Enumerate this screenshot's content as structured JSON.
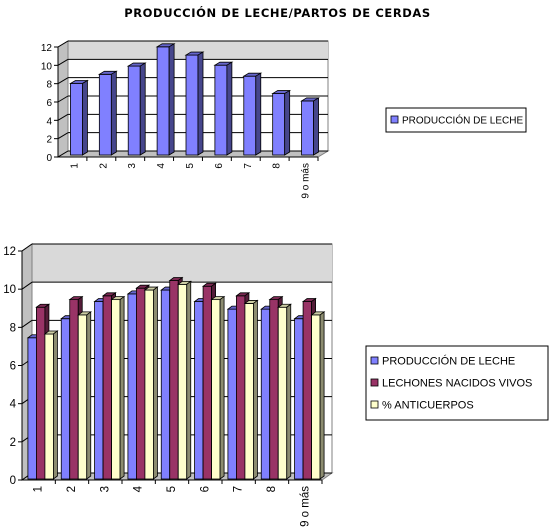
{
  "title": "PRODUCCIÓN DE LECHE/PARTOS DE CERDAS",
  "chart_data": [
    {
      "type": "bar",
      "title": "PRODUCCIÓN DE LECHE/PARTOS DE CERDAS",
      "categories": [
        "1",
        "2",
        "3",
        "4",
        "5",
        "6",
        "7",
        "8",
        "9 o más"
      ],
      "series": [
        {
          "name": "PRODUCCIÓN DE LECHE",
          "values": [
            7.8,
            8.8,
            9.7,
            11.8,
            10.9,
            9.8,
            8.6,
            6.7,
            5.9
          ],
          "color": "#8080ff"
        }
      ],
      "ylim": [
        0,
        12
      ],
      "yticks": [
        "0",
        "2",
        "4",
        "6",
        "8",
        "10",
        "12"
      ],
      "xlabel": "",
      "ylabel": "",
      "grid": true,
      "legend": "right"
    },
    {
      "type": "bar",
      "categories": [
        "1",
        "2",
        "3",
        "4",
        "5",
        "6",
        "7",
        "8",
        "9 o más"
      ],
      "series": [
        {
          "name": "PRODUCCIÓN DE LECHE",
          "values": [
            7.4,
            8.4,
            9.3,
            9.7,
            9.9,
            9.3,
            8.9,
            8.9,
            8.4
          ],
          "color": "#8080ff"
        },
        {
          "name": "LECHONES NACIDOS VIVOS",
          "values": [
            9.0,
            9.4,
            9.6,
            10.0,
            10.4,
            10.1,
            9.6,
            9.4,
            9.3
          ],
          "color": "#993366"
        },
        {
          "name": "% ANTICUERPOS",
          "values": [
            7.6,
            8.6,
            9.4,
            9.9,
            10.2,
            9.4,
            9.2,
            9.0,
            8.6
          ],
          "color": "#ffffcc"
        }
      ],
      "ylim": [
        0,
        12
      ],
      "yticks": [
        "0",
        "2",
        "4",
        "6",
        "8",
        "10",
        "12"
      ],
      "xlabel": "",
      "ylabel": "",
      "grid": true,
      "legend": "right"
    }
  ]
}
